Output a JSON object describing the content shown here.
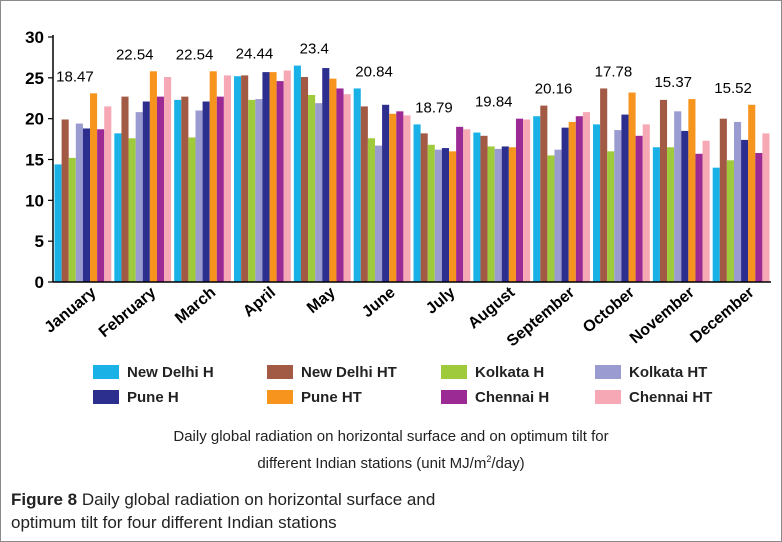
{
  "chart_data": {
    "type": "bar",
    "categories": [
      "January",
      "February",
      "March",
      "April",
      "May",
      "June",
      "July",
      "August",
      "September",
      "October",
      "November",
      "December"
    ],
    "ylim": [
      0,
      30
    ],
    "yticks": [
      0,
      5,
      10,
      15,
      20,
      25,
      30
    ],
    "series": [
      {
        "name": "New Delhi H",
        "color": "#1ab2e6",
        "values": [
          14.4,
          18.2,
          22.3,
          25.2,
          26.5,
          23.7,
          19.3,
          18.3,
          20.3,
          19.3,
          16.5,
          14.0
        ]
      },
      {
        "name": "New Delhi HT",
        "color": "#a35a44",
        "values": [
          19.9,
          22.7,
          22.7,
          25.3,
          25.1,
          21.5,
          18.2,
          17.9,
          21.6,
          23.7,
          22.3,
          20.0
        ]
      },
      {
        "name": "Kolkata H",
        "color": "#9fca3c",
        "values": [
          15.2,
          17.6,
          17.7,
          22.3,
          22.9,
          17.6,
          16.8,
          16.6,
          15.5,
          16.0,
          16.5,
          14.9
        ]
      },
      {
        "name": "Kolkata HT",
        "color": "#9a9bd0",
        "values": [
          19.4,
          20.8,
          21.0,
          22.4,
          21.9,
          16.7,
          16.2,
          16.3,
          16.2,
          18.6,
          20.9,
          19.6
        ]
      },
      {
        "name": "Pune H",
        "color": "#2d2f8f",
        "values": [
          18.8,
          22.1,
          22.1,
          25.7,
          26.2,
          21.7,
          16.4,
          16.6,
          18.9,
          20.5,
          18.5,
          17.4
        ]
      },
      {
        "name": "Pune HT",
        "color": "#f7941d",
        "values": [
          23.1,
          25.8,
          25.8,
          25.7,
          24.9,
          20.6,
          16.0,
          16.5,
          19.6,
          23.2,
          22.4,
          21.7
        ]
      },
      {
        "name": "Chennai H",
        "color": "#9c2a94",
        "values": [
          18.7,
          22.7,
          22.7,
          24.6,
          23.7,
          20.9,
          19.0,
          20.0,
          20.3,
          17.9,
          15.7,
          15.8
        ]
      },
      {
        "name": "Chennai HT",
        "color": "#f6a8b5",
        "values": [
          21.5,
          25.1,
          25.3,
          25.9,
          23.0,
          20.4,
          18.7,
          19.9,
          20.8,
          19.3,
          17.3,
          18.2
        ]
      }
    ],
    "annotations": [
      "18.47",
      "22.54",
      "22.54",
      "24.44",
      "23.4",
      "20.84",
      "18.79",
      "19.84",
      "20.16",
      "17.78",
      "15.37",
      "15.52"
    ],
    "legend_position": "bottom",
    "grid": false
  },
  "chart_caption": {
    "line1": "Daily global radiation on horizontal surface and on optimum tilt for",
    "line2_prefix": "different Indian stations (unit MJ/m",
    "line2_sup": "2",
    "line2_suffix": "/day)"
  },
  "figure_caption": {
    "label": "Figure 8",
    "text_line1": " Daily global radiation on horizontal surface and",
    "text_line2": "optimum tilt for four different Indian stations"
  }
}
